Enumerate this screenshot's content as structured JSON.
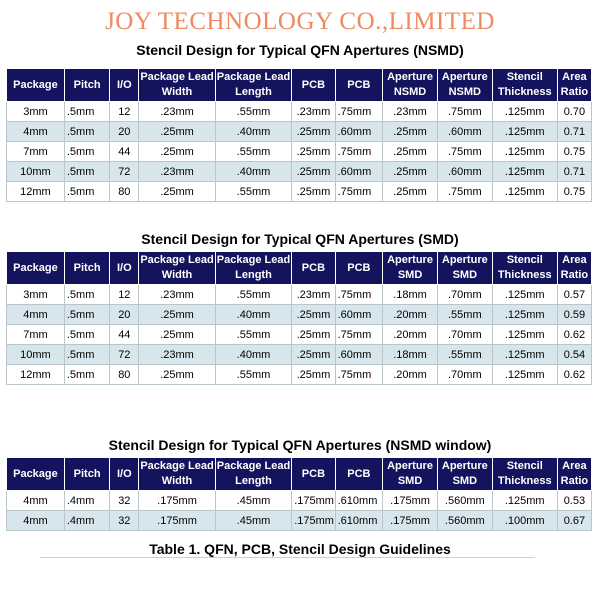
{
  "company": "JOY TECHNOLOGY CO.,LIMITED",
  "columns": [
    [
      "Package"
    ],
    [
      "Pitch"
    ],
    [
      "I/O"
    ],
    [
      "Package Lead",
      "Width"
    ],
    [
      "Package Lead",
      "Length"
    ],
    [
      "PCB"
    ],
    [
      "PCB"
    ],
    [
      "Aperture",
      "NSMD"
    ],
    [
      "Aperture",
      "NSMD"
    ],
    [
      "Stencil",
      "Thickness"
    ],
    [
      "Area",
      "Ratio"
    ]
  ],
  "columns_smd": [
    [
      "Package"
    ],
    [
      "Pitch"
    ],
    [
      "I/O"
    ],
    [
      "Package Lead",
      "Width"
    ],
    [
      "Package Lead",
      "Length"
    ],
    [
      "PCB"
    ],
    [
      "PCB"
    ],
    [
      "Aperture",
      "SMD"
    ],
    [
      "Aperture",
      "SMD"
    ],
    [
      "Stencil",
      "Thickness"
    ],
    [
      "Area",
      "Ratio"
    ]
  ],
  "tables": [
    {
      "title": "Stencil Design for Typical QFN Apertures (NSMD)",
      "headers_key": "columns",
      "rows": [
        [
          "3mm",
          ".5mm",
          "12",
          ".23mm",
          ".55mm",
          ".23mm",
          ".75mm",
          ".23mm",
          ".75mm",
          ".125mm",
          "0.70"
        ],
        [
          "4mm",
          ".5mm",
          "20",
          ".25mm",
          ".40mm",
          ".25mm",
          ".60mm",
          ".25mm",
          ".60mm",
          ".125mm",
          "0.71"
        ],
        [
          "7mm",
          ".5mm",
          "44",
          ".25mm",
          ".55mm",
          ".25mm",
          ".75mm",
          ".25mm",
          ".75mm",
          ".125mm",
          "0.75"
        ],
        [
          "10mm",
          ".5mm",
          "72",
          ".23mm",
          ".40mm",
          ".25mm",
          ".60mm",
          ".25mm",
          ".60mm",
          ".125mm",
          "0.71"
        ],
        [
          "12mm",
          ".5mm",
          "80",
          ".25mm",
          ".55mm",
          ".25mm",
          ".75mm",
          ".25mm",
          ".75mm",
          ".125mm",
          "0.75"
        ]
      ]
    },
    {
      "title": "Stencil Design for Typical QFN Apertures (SMD)",
      "headers_key": "columns_smd",
      "rows": [
        [
          "3mm",
          ".5mm",
          "12",
          ".23mm",
          ".55mm",
          ".23mm",
          ".75mm",
          ".18mm",
          ".70mm",
          ".125mm",
          "0.57"
        ],
        [
          "4mm",
          ".5mm",
          "20",
          ".25mm",
          ".40mm",
          ".25mm",
          ".60mm",
          ".20mm",
          ".55mm",
          ".125mm",
          "0.59"
        ],
        [
          "7mm",
          ".5mm",
          "44",
          ".25mm",
          ".55mm",
          ".25mm",
          ".75mm",
          ".20mm",
          ".70mm",
          ".125mm",
          "0.62"
        ],
        [
          "10mm",
          ".5mm",
          "72",
          ".23mm",
          ".40mm",
          ".25mm",
          ".60mm",
          ".18mm",
          ".55mm",
          ".125mm",
          "0.54"
        ],
        [
          "12mm",
          ".5mm",
          "80",
          ".25mm",
          ".55mm",
          ".25mm",
          ".75mm",
          ".20mm",
          ".70mm",
          ".125mm",
          "0.62"
        ]
      ]
    },
    {
      "title": "Stencil Design for Typical QFN Apertures (NSMD window)",
      "headers_key": "columns_smd",
      "rows": [
        [
          "4mm",
          ".4mm",
          "32",
          ".175mm",
          ".45mm",
          ".175mm",
          ".610mm",
          ".175mm",
          ".560mm",
          ".125mm",
          "0.53"
        ],
        [
          "4mm",
          ".4mm",
          "32",
          ".175mm",
          ".45mm",
          ".175mm",
          ".610mm",
          ".175mm",
          ".560mm",
          ".100mm",
          "0.67"
        ]
      ]
    }
  ],
  "caption": "Table 1. QFN, PCB, Stencil Design Guidelines"
}
